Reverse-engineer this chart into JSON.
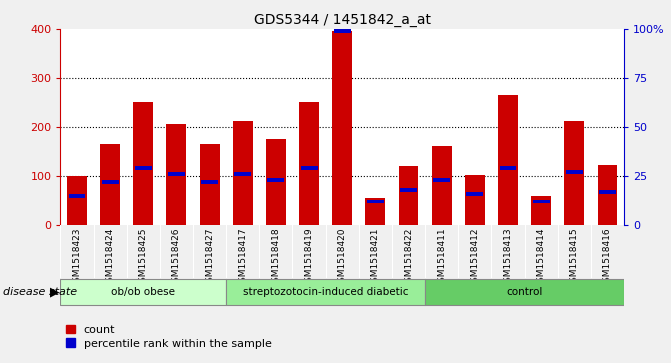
{
  "title": "GDS5344 / 1451842_a_at",
  "samples": [
    "GSM1518423",
    "GSM1518424",
    "GSM1518425",
    "GSM1518426",
    "GSM1518427",
    "GSM1518417",
    "GSM1518418",
    "GSM1518419",
    "GSM1518420",
    "GSM1518421",
    "GSM1518422",
    "GSM1518411",
    "GSM1518412",
    "GSM1518413",
    "GSM1518414",
    "GSM1518415",
    "GSM1518416"
  ],
  "counts": [
    100,
    165,
    252,
    207,
    165,
    212,
    175,
    252,
    397,
    55,
    120,
    162,
    103,
    265,
    60,
    213,
    122
  ],
  "percentile_pct": [
    15,
    22,
    29,
    26,
    22,
    26,
    23,
    29,
    99,
    12,
    18,
    23,
    16,
    29,
    12,
    27,
    17
  ],
  "groups": [
    {
      "name": "ob/ob obese",
      "start": 0,
      "end": 5,
      "color": "#ccffcc"
    },
    {
      "name": "streptozotocin-induced diabetic",
      "start": 5,
      "end": 11,
      "color": "#99ee99"
    },
    {
      "name": "control",
      "start": 11,
      "end": 17,
      "color": "#66cc66"
    }
  ],
  "bar_color": "#cc0000",
  "percentile_color": "#0000cc",
  "ylim_left": [
    0,
    400
  ],
  "ylim_right": [
    0,
    100
  ],
  "yticks_left": [
    0,
    100,
    200,
    300,
    400
  ],
  "yticks_right": [
    0,
    25,
    50,
    75,
    100
  ],
  "yticklabels_right": [
    "0",
    "25",
    "50",
    "75",
    "100%"
  ],
  "grid_values": [
    100,
    200,
    300
  ],
  "bg_color": "#f0f0f0",
  "plot_bg": "#ffffff",
  "xticklabel_bg": "#d8d8d8"
}
